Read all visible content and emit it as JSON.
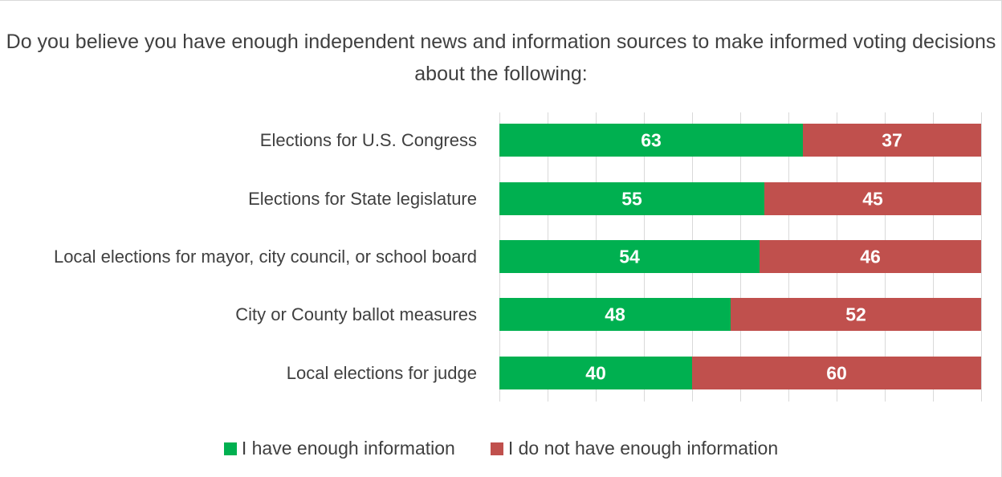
{
  "chart_data": {
    "type": "bar",
    "orientation": "horizontal",
    "stacked": true,
    "title": "Do you believe you have enough independent news and information sources to make informed voting decisions about the following:",
    "categories": [
      "Elections for U.S. Congress",
      "Elections for State legislature",
      "Local elections for mayor, city council, or school board",
      "City or County ballot measures",
      "Local elections for judge"
    ],
    "series": [
      {
        "name": "I have enough information",
        "color": "#00b050",
        "values": [
          63,
          55,
          54,
          48,
          40
        ]
      },
      {
        "name": "I do not have enough information",
        "color": "#c0504d",
        "values": [
          37,
          45,
          46,
          52,
          60
        ]
      }
    ],
    "xlim": [
      0,
      100
    ],
    "grid": true,
    "data_labels": true,
    "legend_position": "bottom"
  }
}
